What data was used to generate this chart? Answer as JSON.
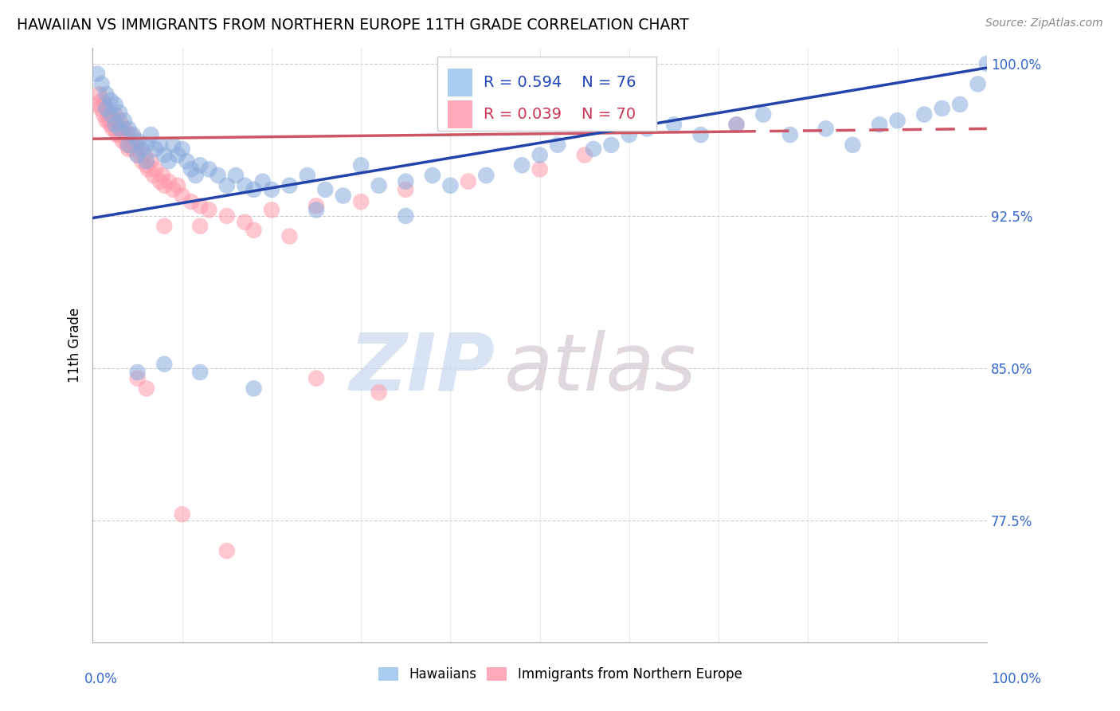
{
  "title": "HAWAIIAN VS IMMIGRANTS FROM NORTHERN EUROPE 11TH GRADE CORRELATION CHART",
  "source": "Source: ZipAtlas.com",
  "ylabel": "11th Grade",
  "xlim": [
    0.0,
    1.0
  ],
  "ylim": [
    0.715,
    1.008
  ],
  "yticks": [
    0.775,
    0.85,
    0.925,
    1.0
  ],
  "ytick_labels": [
    "77.5%",
    "85.0%",
    "92.5%",
    "100.0%"
  ],
  "legend_label1": "Hawaiians",
  "legend_label2": "Immigrants from Northern Europe",
  "R1": 0.594,
  "N1": 76,
  "R2": 0.039,
  "N2": 70,
  "color_blue": "#88AADD",
  "color_pink": "#FF99AA",
  "line_blue": "#2244AA",
  "line_pink": "#CC5566",
  "background_color": "#FFFFFF",
  "watermark_zip": "ZIP",
  "watermark_atlas": "atlas",
  "blue_line_y0": 0.924,
  "blue_line_y1": 0.998,
  "pink_line_y0": 0.963,
  "pink_line_y1": 0.968,
  "pink_line_solid_x1": 0.72,
  "hawaiians_x": [
    0.005,
    0.01,
    0.015,
    0.015,
    0.02,
    0.02,
    0.025,
    0.025,
    0.03,
    0.03,
    0.035,
    0.04,
    0.04,
    0.045,
    0.05,
    0.05,
    0.055,
    0.06,
    0.06,
    0.065,
    0.07,
    0.075,
    0.08,
    0.085,
    0.09,
    0.095,
    0.1,
    0.105,
    0.11,
    0.115,
    0.12,
    0.13,
    0.14,
    0.15,
    0.16,
    0.17,
    0.18,
    0.19,
    0.2,
    0.22,
    0.24,
    0.26,
    0.28,
    0.3,
    0.32,
    0.35,
    0.38,
    0.4,
    0.44,
    0.48,
    0.5,
    0.52,
    0.56,
    0.58,
    0.6,
    0.62,
    0.65,
    0.68,
    0.72,
    0.75,
    0.78,
    0.82,
    0.85,
    0.88,
    0.9,
    0.93,
    0.95,
    0.97,
    0.99,
    1.0,
    0.05,
    0.08,
    0.12,
    0.18,
    0.25,
    0.35
  ],
  "hawaiians_y": [
    0.995,
    0.99,
    0.985,
    0.978,
    0.982,
    0.975,
    0.98,
    0.97,
    0.976,
    0.968,
    0.972,
    0.968,
    0.96,
    0.965,
    0.962,
    0.955,
    0.958,
    0.96,
    0.952,
    0.965,
    0.958,
    0.96,
    0.955,
    0.952,
    0.96,
    0.955,
    0.958,
    0.952,
    0.948,
    0.945,
    0.95,
    0.948,
    0.945,
    0.94,
    0.945,
    0.94,
    0.938,
    0.942,
    0.938,
    0.94,
    0.945,
    0.938,
    0.935,
    0.95,
    0.94,
    0.942,
    0.945,
    0.94,
    0.945,
    0.95,
    0.955,
    0.96,
    0.958,
    0.96,
    0.965,
    0.968,
    0.97,
    0.965,
    0.97,
    0.975,
    0.965,
    0.968,
    0.96,
    0.97,
    0.972,
    0.975,
    0.978,
    0.98,
    0.99,
    1.0,
    0.848,
    0.852,
    0.848,
    0.84,
    0.928,
    0.925
  ],
  "northern_europe_x": [
    0.005,
    0.007,
    0.009,
    0.01,
    0.012,
    0.013,
    0.015,
    0.015,
    0.017,
    0.018,
    0.02,
    0.02,
    0.022,
    0.023,
    0.025,
    0.025,
    0.027,
    0.028,
    0.03,
    0.03,
    0.032,
    0.033,
    0.035,
    0.037,
    0.038,
    0.04,
    0.042,
    0.043,
    0.045,
    0.048,
    0.05,
    0.052,
    0.055,
    0.058,
    0.06,
    0.062,
    0.065,
    0.068,
    0.07,
    0.075,
    0.078,
    0.08,
    0.085,
    0.09,
    0.095,
    0.1,
    0.11,
    0.12,
    0.13,
    0.15,
    0.17,
    0.2,
    0.25,
    0.3,
    0.35,
    0.42,
    0.5,
    0.55,
    0.6,
    0.72,
    0.08,
    0.12,
    0.18,
    0.22,
    0.05,
    0.06,
    0.1,
    0.15,
    0.25,
    0.32
  ],
  "northern_europe_y": [
    0.98,
    0.985,
    0.978,
    0.982,
    0.975,
    0.98,
    0.972,
    0.978,
    0.975,
    0.972,
    0.97,
    0.975,
    0.968,
    0.972,
    0.968,
    0.975,
    0.965,
    0.97,
    0.965,
    0.972,
    0.968,
    0.962,
    0.968,
    0.965,
    0.96,
    0.958,
    0.962,
    0.965,
    0.958,
    0.96,
    0.955,
    0.958,
    0.952,
    0.955,
    0.95,
    0.948,
    0.952,
    0.945,
    0.948,
    0.942,
    0.945,
    0.94,
    0.942,
    0.938,
    0.94,
    0.935,
    0.932,
    0.93,
    0.928,
    0.925,
    0.922,
    0.928,
    0.93,
    0.932,
    0.938,
    0.942,
    0.948,
    0.955,
    0.975,
    0.97,
    0.92,
    0.92,
    0.918,
    0.915,
    0.845,
    0.84,
    0.778,
    0.76,
    0.845,
    0.838
  ]
}
